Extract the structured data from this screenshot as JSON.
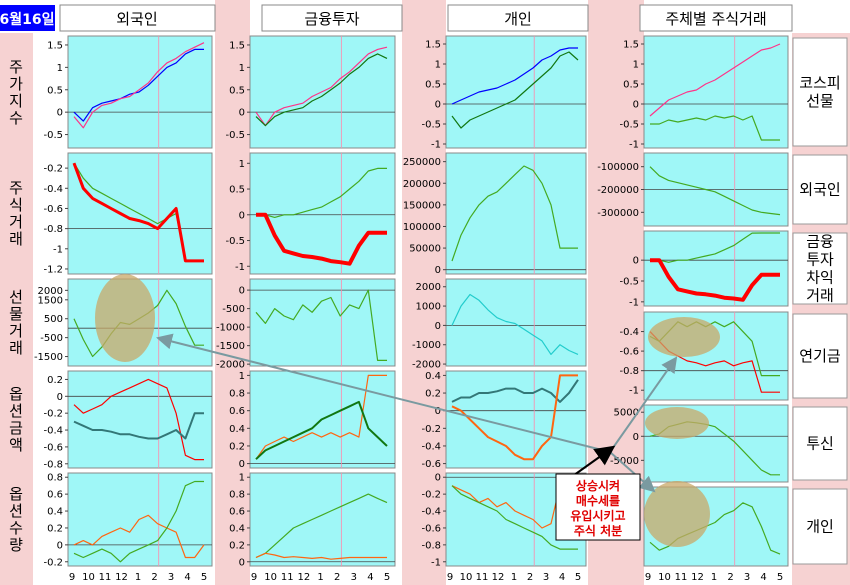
{
  "date_label": "6월16일",
  "columns": [
    "외국인",
    "금융투자",
    "개인",
    "주체별 주식거래"
  ],
  "row_labels": [
    "주가지수",
    "주식거래",
    "선물거래",
    "옵션금액",
    "옵션수량"
  ],
  "right_labels": [
    "코스피 선물",
    "외국인",
    "금융투자 차익거래",
    "연기금",
    "투신",
    "개인"
  ],
  "x_ticks": [
    "9",
    "10",
    "11",
    "12",
    "1",
    "2",
    "3",
    "4",
    "5"
  ],
  "annotation": [
    "상승시켜",
    "매수세를",
    "유입시키고",
    "주식 처분"
  ],
  "colors": {
    "panel_bg": "#9ff7f7",
    "gutter_bg": "#f6d2d2",
    "accent_blue": "#0000ff",
    "red": "#ff0000",
    "green": "#44aa22",
    "dark_green": "#117711",
    "orange": "#ff6611",
    "magenta": "#ff3388",
    "teal": "#337777",
    "cyan": "#22cccc",
    "highlight": "#c8a868"
  },
  "chart_data": [
    {
      "type": "line",
      "id": "c-0-0",
      "group": "외국인",
      "row": "주가지수",
      "yticks": [
        1.5,
        1,
        0.5,
        0,
        -0.5
      ],
      "ylim": [
        -0.8,
        1.7
      ],
      "series": [
        {
          "color": "blue",
          "points": [
            0,
            -0.2,
            0.1,
            0.2,
            0.25,
            0.3,
            0.4,
            0.45,
            0.6,
            0.8,
            1.0,
            1.1,
            1.3,
            1.4,
            1.4
          ]
        },
        {
          "color": "magenta",
          "points": [
            -0.1,
            -0.35,
            0,
            0.15,
            0.2,
            0.3,
            0.35,
            0.5,
            0.65,
            0.9,
            1.1,
            1.2,
            1.35,
            1.45,
            1.55
          ]
        }
      ]
    },
    {
      "type": "line",
      "id": "c-0-1",
      "group": "외국인",
      "row": "주식거래",
      "yticks": [
        -0.2,
        -0.4,
        -0.6,
        -0.8,
        -1,
        -1.2
      ],
      "ylim": [
        -1.25,
        -0.05
      ],
      "series": [
        {
          "color": "green",
          "points": [
            -0.15,
            -0.3,
            -0.4,
            -0.45,
            -0.5,
            -0.55,
            -0.6,
            -0.65,
            -0.7,
            -0.75,
            -0.7,
            -0.65,
            -1.12,
            -1.12,
            -1.12
          ]
        },
        {
          "color": "red",
          "width": 3,
          "points": [
            -0.15,
            -0.4,
            -0.5,
            -0.55,
            -0.6,
            -0.65,
            -0.7,
            -0.72,
            -0.75,
            -0.8,
            -0.7,
            -0.6,
            -1.12,
            -1.12,
            -1.12
          ]
        }
      ]
    },
    {
      "type": "line",
      "id": "c-0-2",
      "group": "외국인",
      "row": "선물거래",
      "yticks": [
        2000,
        1500,
        500,
        -500,
        -1500
      ],
      "ylim": [
        -2000,
        2600
      ],
      "series": [
        {
          "color": "green",
          "points": [
            500,
            -600,
            -1500,
            -1000,
            -300,
            300,
            200,
            500,
            800,
            1200,
            2000,
            1300,
            100,
            -900,
            -900
          ]
        }
      ]
    },
    {
      "type": "line",
      "id": "c-0-3",
      "group": "외국인",
      "row": "옵션금액",
      "yticks": [
        0.2,
        0,
        -0.2,
        -0.4,
        -0.6,
        -0.8
      ],
      "ylim": [
        -0.85,
        0.3
      ],
      "series": [
        {
          "color": "red",
          "points": [
            -0.1,
            -0.2,
            -0.15,
            -0.1,
            0,
            0.05,
            0.1,
            0.15,
            0.2,
            0.15,
            0.1,
            -0.2,
            -0.7,
            -0.75,
            -0.75
          ]
        },
        {
          "color": "teal",
          "width": 2,
          "points": [
            -0.3,
            -0.35,
            -0.4,
            -0.4,
            -0.42,
            -0.45,
            -0.45,
            -0.48,
            -0.5,
            -0.5,
            -0.45,
            -0.4,
            -0.5,
            -0.2,
            -0.2
          ]
        }
      ]
    },
    {
      "type": "line",
      "id": "c-0-4",
      "group": "외국인",
      "row": "옵션수량",
      "yticks": [
        0.8,
        0.6,
        0.4,
        0.2,
        0,
        -0.2
      ],
      "ylim": [
        -0.25,
        0.85
      ],
      "series": [
        {
          "color": "orange",
          "points": [
            0,
            0.05,
            0,
            0.1,
            0.15,
            0.2,
            0.15,
            0.3,
            0.35,
            0.25,
            0.2,
            0.15,
            -0.15,
            -0.15,
            0
          ]
        },
        {
          "color": "green",
          "points": [
            -0.1,
            -0.15,
            -0.1,
            -0.05,
            -0.1,
            -0.2,
            -0.1,
            -0.05,
            0,
            0.05,
            0.2,
            0.4,
            0.7,
            0.75,
            0.75
          ]
        }
      ]
    },
    {
      "type": "line",
      "id": "c-1-0",
      "group": "금융투자",
      "row": "주가지수",
      "yticks": [
        1.5,
        1,
        0.5,
        0,
        -0.5
      ],
      "ylim": [
        -0.8,
        1.7
      ],
      "series": [
        {
          "color": "magenta",
          "points": [
            0,
            -0.3,
            0,
            0.1,
            0.15,
            0.2,
            0.35,
            0.45,
            0.55,
            0.75,
            0.9,
            1.1,
            1.3,
            1.4,
            1.45
          ]
        },
        {
          "color": "dark_green",
          "points": [
            -0.1,
            -0.3,
            -0.1,
            0,
            0.05,
            0.1,
            0.25,
            0.35,
            0.5,
            0.65,
            0.85,
            1.0,
            1.2,
            1.3,
            1.2
          ]
        }
      ]
    },
    {
      "type": "line",
      "id": "c-1-1",
      "group": "금융투자",
      "row": "주식거래",
      "yticks": [
        -1,
        -0.5,
        0,
        0.5,
        1
      ],
      "ylim": [
        -1.15,
        1.2
      ],
      "series": [
        {
          "color": "green",
          "points": [
            0,
            0,
            -0.05,
            0,
            0,
            0.05,
            0.1,
            0.15,
            0.25,
            0.35,
            0.5,
            0.65,
            0.85,
            0.9,
            0.9
          ]
        },
        {
          "color": "red",
          "width": 4,
          "points": [
            0,
            0,
            -0.4,
            -0.7,
            -0.75,
            -0.8,
            -0.82,
            -0.85,
            -0.9,
            -0.92,
            -0.95,
            -0.6,
            -0.35,
            -0.35,
            -0.35
          ]
        }
      ]
    },
    {
      "type": "line",
      "id": "c-1-2",
      "group": "금융투자",
      "row": "선물거래",
      "yticks": [
        0,
        -500,
        -1000,
        -1500,
        -2000
      ],
      "ylim": [
        -2050,
        300
      ],
      "series": [
        {
          "color": "green",
          "points": [
            -600,
            -900,
            -500,
            -700,
            -800,
            -400,
            -600,
            -300,
            -200,
            -700,
            -400,
            -500,
            0,
            -1900,
            -1900
          ]
        }
      ]
    },
    {
      "type": "line",
      "id": "c-1-3",
      "group": "금융투자",
      "row": "옵션금액",
      "yticks": [
        1,
        0.8,
        0.6,
        0.4,
        0.2,
        0
      ],
      "ylim": [
        -0.05,
        1.05
      ],
      "series": [
        {
          "color": "orange",
          "points": [
            0.05,
            0.2,
            0.25,
            0.3,
            0.25,
            0.3,
            0.35,
            0.3,
            0.35,
            0.3,
            0.35,
            0.3,
            1.0,
            1.0,
            1.0
          ]
        },
        {
          "color": "dark_green",
          "width": 2,
          "points": [
            0.05,
            0.15,
            0.2,
            0.25,
            0.3,
            0.35,
            0.4,
            0.5,
            0.55,
            0.6,
            0.65,
            0.7,
            0.4,
            0.3,
            0.2
          ]
        }
      ]
    },
    {
      "type": "line",
      "id": "c-1-4",
      "group": "금융투자",
      "row": "옵션수량",
      "yticks": [
        1,
        0.8,
        0.6,
        0.4,
        0.2,
        0
      ],
      "ylim": [
        -0.05,
        1.05
      ],
      "series": [
        {
          "color": "green",
          "points": [
            0.05,
            0.1,
            0.2,
            0.3,
            0.4,
            0.45,
            0.5,
            0.55,
            0.6,
            0.65,
            0.7,
            0.75,
            0.8,
            0.75,
            0.7
          ]
        },
        {
          "color": "orange",
          "points": [
            0.05,
            0.1,
            0.08,
            0.05,
            0.06,
            0.05,
            0.04,
            0.05,
            0.03,
            0.04,
            0.05,
            0.05,
            0.05,
            0.05,
            0.05
          ]
        }
      ]
    },
    {
      "type": "line",
      "id": "c-2-0",
      "group": "개인",
      "row": "주가지수",
      "yticks": [
        1.5,
        1,
        0.5,
        0,
        -0.5,
        -1
      ],
      "ylim": [
        -1.1,
        1.7
      ],
      "series": [
        {
          "color": "blue",
          "points": [
            0,
            0.1,
            0.2,
            0.3,
            0.35,
            0.4,
            0.5,
            0.6,
            0.75,
            0.9,
            1.1,
            1.2,
            1.35,
            1.4,
            1.4
          ]
        },
        {
          "color": "dark_green",
          "points": [
            -0.3,
            -0.6,
            -0.4,
            -0.3,
            -0.2,
            -0.1,
            0,
            0.1,
            0.3,
            0.5,
            0.7,
            0.9,
            1.2,
            1.3,
            1.1
          ]
        }
      ]
    },
    {
      "type": "line",
      "id": "c-2-1",
      "group": "개인",
      "row": "주식거래",
      "yticks": [
        250000,
        200000,
        150000,
        100000,
        50000,
        0
      ],
      "ylim": [
        -10000,
        270000
      ],
      "series": [
        {
          "color": "green",
          "points": [
            20000,
            80000,
            120000,
            150000,
            170000,
            180000,
            200000,
            220000,
            240000,
            230000,
            200000,
            150000,
            50000,
            50000,
            50000
          ]
        }
      ]
    },
    {
      "type": "line",
      "id": "c-2-2",
      "group": "개인",
      "row": "선물거래",
      "yticks": [
        2000,
        1000,
        0,
        -1000,
        -2000
      ],
      "ylim": [
        -2100,
        2400
      ],
      "series": [
        {
          "color": "cyan",
          "points": [
            0,
            1000,
            1600,
            1300,
            800,
            400,
            200,
            100,
            -200,
            -500,
            -800,
            -1500,
            -1000,
            -1300,
            -1500
          ]
        }
      ]
    },
    {
      "type": "line",
      "id": "c-2-3",
      "group": "개인",
      "row": "옵션금액",
      "yticks": [
        0.4,
        0.2,
        0,
        -0.2,
        -0.4,
        -0.6
      ],
      "ylim": [
        -0.65,
        0.45
      ],
      "series": [
        {
          "color": "teal",
          "width": 2,
          "points": [
            0.1,
            0.15,
            0.15,
            0.2,
            0.2,
            0.22,
            0.25,
            0.25,
            0.2,
            0.2,
            0.25,
            0.2,
            0.1,
            0.2,
            0.35
          ]
        },
        {
          "color": "orange",
          "width": 2,
          "points": [
            0.05,
            0,
            -0.1,
            -0.2,
            -0.3,
            -0.35,
            -0.4,
            -0.5,
            -0.55,
            -0.55,
            -0.4,
            -0.3,
            0.4,
            0.4,
            0.4
          ]
        }
      ]
    },
    {
      "type": "line",
      "id": "c-2-4",
      "group": "개인",
      "row": "옵션수량",
      "yticks": [
        0,
        -0.2,
        -0.4,
        -0.6,
        -0.8,
        -1
      ],
      "ylim": [
        -1.05,
        0.05
      ],
      "series": [
        {
          "color": "orange",
          "points": [
            -0.1,
            -0.15,
            -0.2,
            -0.3,
            -0.25,
            -0.35,
            -0.3,
            -0.4,
            -0.45,
            -0.5,
            -0.6,
            -0.55,
            -0.1,
            0,
            0
          ]
        },
        {
          "color": "green",
          "points": [
            -0.1,
            -0.2,
            -0.25,
            -0.3,
            -0.35,
            -0.4,
            -0.5,
            -0.55,
            -0.6,
            -0.65,
            -0.7,
            -0.8,
            -0.85,
            -0.85,
            -0.85
          ]
        }
      ]
    },
    {
      "type": "line",
      "id": "c-3-0",
      "group": "주체별 주식거래",
      "row": "코스피 선물",
      "yticks": [
        1.5,
        1,
        0.5,
        0,
        -0.5,
        -1
      ],
      "ylim": [
        -1.1,
        1.7
      ],
      "series": [
        {
          "color": "magenta",
          "points": [
            -0.3,
            -0.1,
            0.1,
            0.2,
            0.3,
            0.35,
            0.5,
            0.6,
            0.75,
            0.9,
            1.05,
            1.2,
            1.35,
            1.4,
            1.5
          ]
        },
        {
          "color": "green",
          "points": [
            -0.5,
            -0.5,
            -0.4,
            -0.45,
            -0.4,
            -0.35,
            -0.4,
            -0.3,
            -0.35,
            -0.3,
            -0.4,
            -0.3,
            -0.9,
            -0.9,
            -0.9
          ]
        }
      ]
    },
    {
      "type": "line",
      "id": "c-3-1",
      "group": "주체별 주식거래",
      "row": "외국인",
      "yticks": [
        -100000,
        -200000,
        -300000
      ],
      "ylim": [
        -360000,
        -40000
      ],
      "series": [
        {
          "color": "green",
          "points": [
            -100000,
            -140000,
            -160000,
            -170000,
            -180000,
            -190000,
            -200000,
            -210000,
            -230000,
            -250000,
            -270000,
            -290000,
            -300000,
            -305000,
            -310000
          ]
        }
      ]
    },
    {
      "type": "line",
      "id": "c-3-2",
      "group": "주체별 주식거래",
      "row": "금융투자 차익거래",
      "yticks": [
        0,
        -0.5,
        -1
      ],
      "ylim": [
        -1.1,
        0.7
      ],
      "series": [
        {
          "color": "green",
          "points": [
            0,
            0,
            -0.05,
            0,
            0,
            0.05,
            0.1,
            0.15,
            0.25,
            0.35,
            0.5,
            0.65,
            0.85,
            0.9,
            0.9
          ]
        },
        {
          "color": "red",
          "width": 4,
          "points": [
            0,
            0,
            -0.4,
            -0.7,
            -0.75,
            -0.8,
            -0.82,
            -0.85,
            -0.9,
            -0.92,
            -0.95,
            -0.6,
            -0.35,
            -0.35,
            -0.35
          ]
        }
      ]
    },
    {
      "type": "line",
      "id": "c-3-3",
      "group": "주체별 주식거래",
      "row": "연기금",
      "yticks": [
        -0.4,
        -0.6,
        -0.8,
        -1
      ],
      "ylim": [
        -1.1,
        -0.2
      ],
      "series": [
        {
          "color": "red",
          "points": [
            -0.4,
            -0.5,
            -0.6,
            -0.65,
            -0.7,
            -0.72,
            -0.75,
            -0.72,
            -0.7,
            -0.75,
            -0.72,
            -0.7,
            -1.02,
            -1.02,
            -1.02
          ]
        },
        {
          "color": "green",
          "points": [
            -0.45,
            -0.5,
            -0.4,
            -0.3,
            -0.35,
            -0.3,
            -0.35,
            -0.3,
            -0.35,
            -0.3,
            -0.4,
            -0.5,
            -0.85,
            -0.85,
            -0.85
          ]
        }
      ]
    },
    {
      "type": "line",
      "id": "c-3-4",
      "group": "주체별 주식거래",
      "row": "투신",
      "yticks": [
        5000,
        0,
        -5000
      ],
      "ylim": [
        -9500,
        6500
      ],
      "series": [
        {
          "color": "green",
          "points": [
            0,
            500,
            2000,
            2500,
            3000,
            2800,
            2500,
            2000,
            500,
            -1000,
            -3000,
            -5000,
            -7000,
            -8000,
            -8000
          ]
        }
      ]
    },
    {
      "type": "line",
      "id": "c-3-5",
      "group": "주체별 주식거래",
      "row": "개인",
      "yticks": [],
      "ylim": [
        0,
        1
      ],
      "series": [
        {
          "color": "green",
          "points": [
            0.3,
            0.2,
            0.25,
            0.35,
            0.4,
            0.45,
            0.5,
            0.55,
            0.65,
            0.7,
            0.8,
            0.75,
            0.5,
            0.2,
            0.15
          ]
        }
      ]
    }
  ]
}
